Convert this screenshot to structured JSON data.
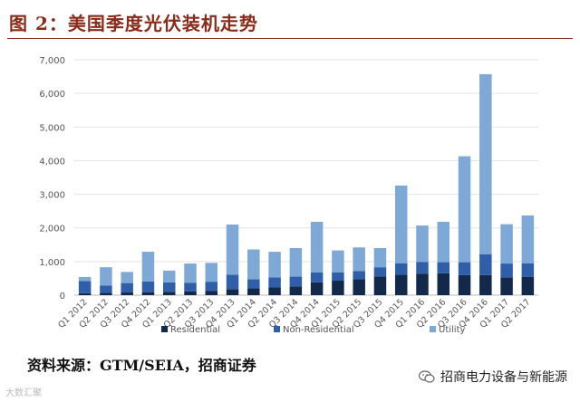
{
  "header": {
    "title": "图 2：美国季度光伏装机走势"
  },
  "footer": {
    "source": "资料来源：GTM/SEIA，招商证券",
    "brand": "招商电力设备与新能源",
    "brand_icon": "wechat-icon",
    "corner_mark": "大数汇聚"
  },
  "chart_data": {
    "type": "bar",
    "stacked": true,
    "categories": [
      "Q1 2012",
      "Q2 2012",
      "Q3 2012",
      "Q4 2012",
      "Q1 2013",
      "Q2 2013",
      "Q3 2013",
      "Q4 2013",
      "Q1 2014",
      "Q2 2014",
      "Q3 2014",
      "Q4 2014",
      "Q1 2015",
      "Q2 2015",
      "Q3 2015",
      "Q4 2015",
      "Q1 2016",
      "Q2 2016",
      "Q3 2016",
      "Q4 2016",
      "Q1 2017",
      "Q2 2017"
    ],
    "series": [
      {
        "name": "Residential",
        "color": "#13294b",
        "values": [
          60,
          70,
          80,
          90,
          100,
          110,
          130,
          180,
          200,
          230,
          260,
          380,
          430,
          470,
          550,
          610,
          640,
          650,
          600,
          600,
          530,
          540
        ]
      },
      {
        "name": "Non-Residential",
        "color": "#2e5fa8",
        "values": [
          360,
          220,
          280,
          320,
          280,
          260,
          270,
          430,
          270,
          300,
          290,
          300,
          250,
          250,
          280,
          340,
          350,
          330,
          380,
          620,
          410,
          410
        ]
      },
      {
        "name": "Utility",
        "color": "#7ea8d6",
        "values": [
          120,
          540,
          330,
          880,
          350,
          570,
          560,
          1490,
          890,
          760,
          850,
          1500,
          650,
          700,
          570,
          2310,
          1080,
          1200,
          3150,
          5350,
          1170,
          1420
        ]
      }
    ],
    "yticks": [
      "0",
      "1,000",
      "2,000",
      "3,000",
      "4,000",
      "5,000",
      "6,000",
      "7,000"
    ],
    "ylim": [
      0,
      7000
    ],
    "grid": true,
    "legend": "bottom"
  }
}
